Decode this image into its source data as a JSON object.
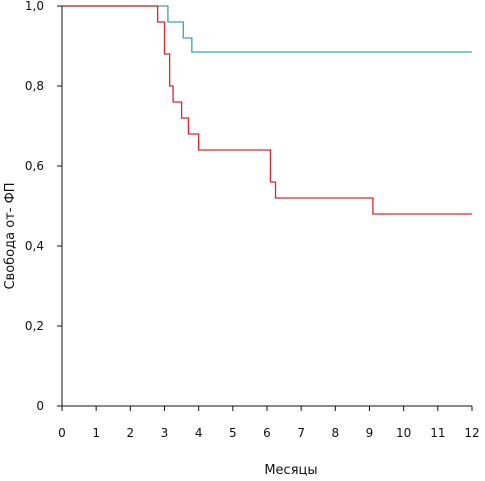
{
  "chart_data": {
    "type": "line",
    "title": "",
    "xlabel": "Месяцы",
    "ylabel": "Свобода от- ФП",
    "x_ticks": [
      "0",
      "1",
      "2",
      "3",
      "4",
      "5",
      "6",
      "7",
      "8",
      "9",
      "10",
      "11",
      "12"
    ],
    "y_ticks": [
      "0",
      "0,2",
      "0,4",
      "0,6",
      "0,8",
      "1,0"
    ],
    "xlim": [
      0,
      12
    ],
    "ylim": [
      0,
      1
    ],
    "grid": false,
    "legend": "none",
    "series": [
      {
        "color": "#3aa6a6",
        "step": true,
        "points": [
          [
            0,
            1.0
          ],
          [
            3.0,
            1.0
          ],
          [
            3.1,
            0.96
          ],
          [
            3.55,
            0.92
          ],
          [
            3.8,
            0.885
          ],
          [
            12,
            0.885
          ]
        ]
      },
      {
        "color": "#e0262b",
        "step": true,
        "points": [
          [
            0,
            1.0
          ],
          [
            2.8,
            1.0
          ],
          [
            2.8,
            0.96
          ],
          [
            3.0,
            0.88
          ],
          [
            3.15,
            0.8
          ],
          [
            3.25,
            0.76
          ],
          [
            3.5,
            0.72
          ],
          [
            3.7,
            0.68
          ],
          [
            4.0,
            0.64
          ],
          [
            6.1,
            0.56
          ],
          [
            6.25,
            0.52
          ],
          [
            9.1,
            0.48
          ],
          [
            12,
            0.48
          ]
        ]
      }
    ]
  }
}
